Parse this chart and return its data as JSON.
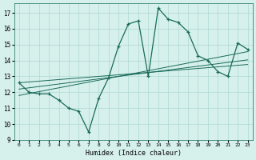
{
  "x": [
    0,
    1,
    2,
    3,
    4,
    5,
    6,
    7,
    8,
    9,
    10,
    11,
    12,
    13,
    14,
    15,
    16,
    17,
    18,
    19,
    20,
    21,
    22,
    23
  ],
  "y_main": [
    12.6,
    12.0,
    11.9,
    11.9,
    11.5,
    11.0,
    10.8,
    9.5,
    11.6,
    12.9,
    14.9,
    16.3,
    16.5,
    13.0,
    17.3,
    16.6,
    16.4,
    15.8,
    14.3,
    14.0,
    13.3,
    13.0,
    15.1,
    14.7
  ],
  "y_reg1": [
    12.6,
    12.65,
    12.7,
    12.75,
    12.8,
    12.85,
    12.9,
    12.95,
    13.0,
    13.05,
    13.1,
    13.15,
    13.2,
    13.25,
    13.3,
    13.35,
    13.4,
    13.45,
    13.5,
    13.55,
    13.6,
    13.65,
    13.7,
    13.75
  ],
  "y_reg2": [
    12.2,
    12.28,
    12.36,
    12.44,
    12.52,
    12.6,
    12.68,
    12.76,
    12.84,
    12.92,
    13.0,
    13.08,
    13.16,
    13.24,
    13.32,
    13.4,
    13.48,
    13.56,
    13.64,
    13.72,
    13.8,
    13.88,
    13.96,
    14.04
  ],
  "y_reg3": [
    11.8,
    11.92,
    12.04,
    12.16,
    12.28,
    12.4,
    12.52,
    12.64,
    12.76,
    12.88,
    13.0,
    13.12,
    13.24,
    13.36,
    13.48,
    13.6,
    13.72,
    13.84,
    13.96,
    14.08,
    14.2,
    14.32,
    14.44,
    14.56
  ],
  "line_color": "#1a6b5a",
  "bg_color": "#d6f0ec",
  "grid_color": "#b0d8d0",
  "xlabel": "Humidex (Indice chaleur)",
  "xlim": [
    -0.5,
    23.5
  ],
  "ylim": [
    9.0,
    17.6
  ],
  "yticks": [
    9,
    10,
    11,
    12,
    13,
    14,
    15,
    16,
    17
  ],
  "xticks": [
    0,
    1,
    2,
    3,
    4,
    5,
    6,
    7,
    8,
    9,
    10,
    11,
    12,
    13,
    14,
    15,
    16,
    17,
    18,
    19,
    20,
    21,
    22,
    23
  ]
}
